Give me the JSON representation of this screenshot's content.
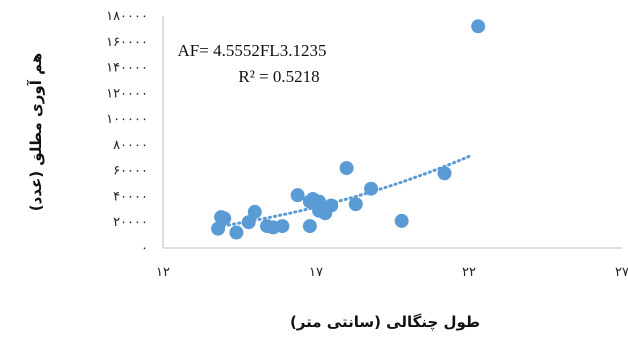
{
  "chart_data": {
    "type": "scatter",
    "xlabel": "طول چنگالی (سانتی متر)",
    "ylabel": "هم آوری مطلق (عدد)",
    "xlim": [
      12,
      27
    ],
    "ylim": [
      0,
      180000
    ],
    "x_ticks": [
      {
        "value": 12,
        "label": "۱۲"
      },
      {
        "value": 17,
        "label": "۱۷"
      },
      {
        "value": 22,
        "label": "۲۲"
      },
      {
        "value": 27,
        "label": "۲۷"
      }
    ],
    "y_ticks": [
      {
        "value": 0,
        "label": "۰"
      },
      {
        "value": 20000,
        "label": "۲۰۰۰۰"
      },
      {
        "value": 40000,
        "label": "۴۰۰۰۰"
      },
      {
        "value": 60000,
        "label": "۶۰۰۰۰"
      },
      {
        "value": 80000,
        "label": "۸۰۰۰۰"
      },
      {
        "value": 100000,
        "label": "۱۰۰۰۰۰"
      },
      {
        "value": 120000,
        "label": "۱۲۰۰۰۰"
      },
      {
        "value": 140000,
        "label": "۱۴۰۰۰۰"
      },
      {
        "value": 160000,
        "label": "۱۶۰۰۰۰"
      },
      {
        "value": 180000,
        "label": "۱۸۰۰۰۰"
      }
    ],
    "points": [
      {
        "x": 13.8,
        "y": 15000
      },
      {
        "x": 13.9,
        "y": 24000
      },
      {
        "x": 14.0,
        "y": 23000
      },
      {
        "x": 14.4,
        "y": 12000
      },
      {
        "x": 14.8,
        "y": 20000
      },
      {
        "x": 15.0,
        "y": 28000
      },
      {
        "x": 15.4,
        "y": 17000
      },
      {
        "x": 15.6,
        "y": 16000
      },
      {
        "x": 15.9,
        "y": 17000
      },
      {
        "x": 16.4,
        "y": 41000
      },
      {
        "x": 16.8,
        "y": 17000
      },
      {
        "x": 16.8,
        "y": 36000
      },
      {
        "x": 16.9,
        "y": 38000
      },
      {
        "x": 17.1,
        "y": 36000
      },
      {
        "x": 17.1,
        "y": 29000
      },
      {
        "x": 17.3,
        "y": 27000
      },
      {
        "x": 17.5,
        "y": 33000
      },
      {
        "x": 18.0,
        "y": 62000
      },
      {
        "x": 18.3,
        "y": 34000
      },
      {
        "x": 18.8,
        "y": 46000
      },
      {
        "x": 19.8,
        "y": 21000
      },
      {
        "x": 21.2,
        "y": 58000
      },
      {
        "x": 22.3,
        "y": 172000
      }
    ],
    "series_color": "#5b9bd5",
    "trendline": {
      "type": "power",
      "coefficient": 4.5552,
      "exponent": 3.1235,
      "x_range": [
        13.8,
        22.0
      ],
      "style": "dotted",
      "color": "#5b9bd5"
    },
    "annotations": {
      "equation": "AF= 4.5552FL3.1235",
      "r_squared": "R² = 0.5218"
    },
    "grid": false,
    "legend": "none"
  }
}
